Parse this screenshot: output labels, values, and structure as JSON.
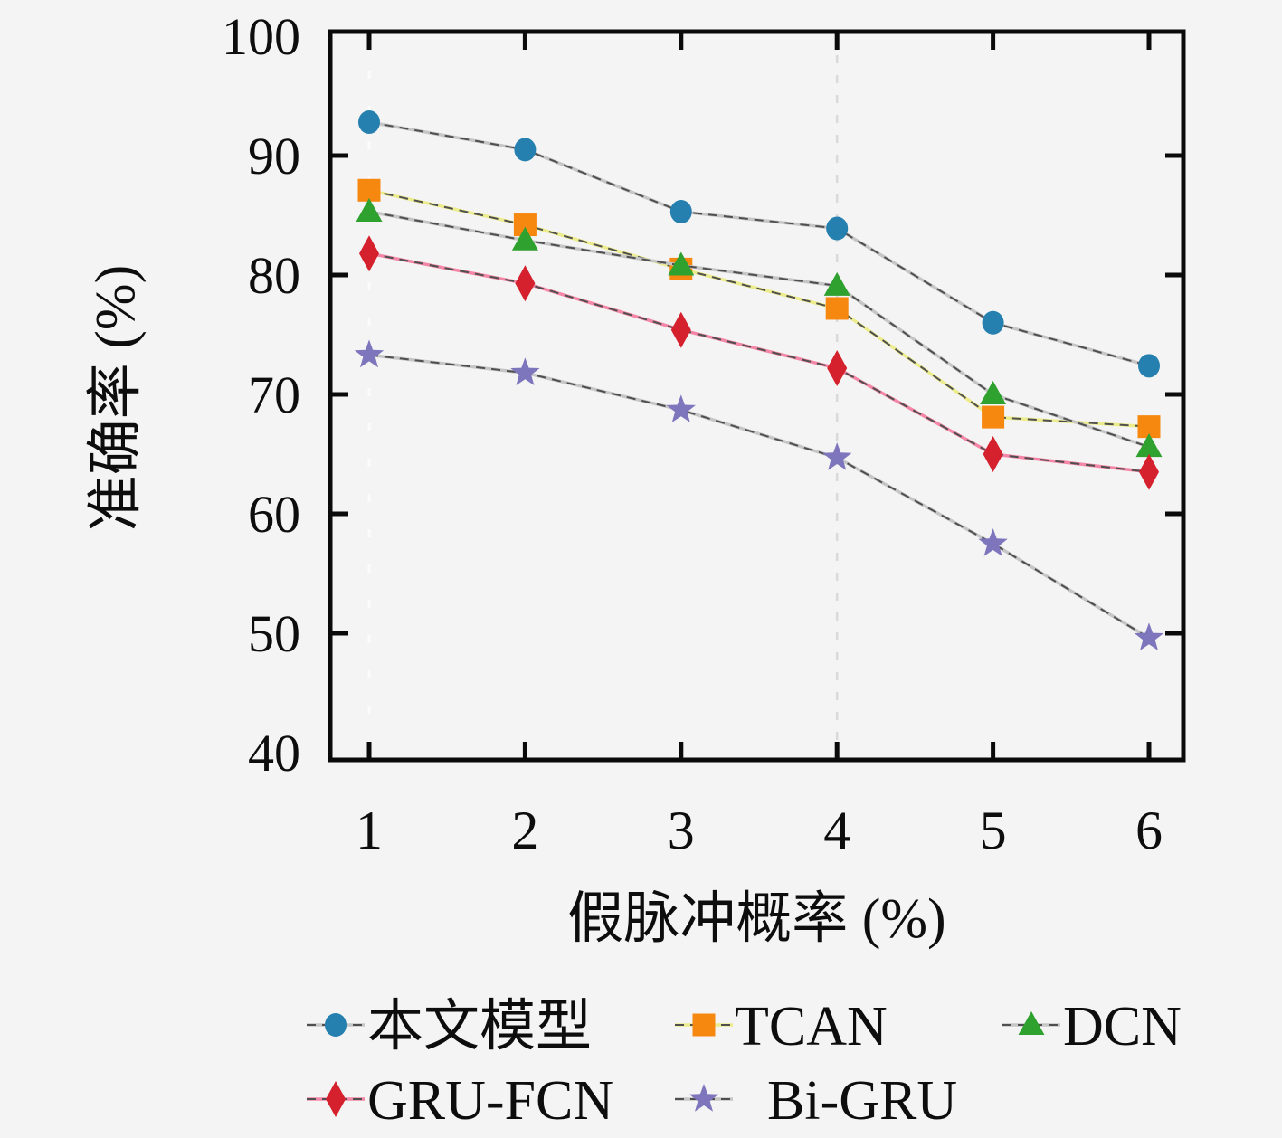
{
  "figure": {
    "background": "#f4f4f4",
    "frame_color": "#0a0a0a",
    "dash_overlay_color": "#4f4f4f"
  },
  "axes": {
    "ylabel": "准确率 (%)",
    "xlabel": "假脉冲概率 (%)",
    "ytick_labels": [
      "100",
      "90",
      "80",
      "70",
      "60",
      "50",
      "40"
    ],
    "xtick_labels": [
      "1",
      "2",
      "3",
      "4",
      "5",
      "6"
    ]
  },
  "chart_data": {
    "type": "line",
    "title": "",
    "xlabel": "假脉冲概率 (%)",
    "ylabel": "准确率 (%)",
    "x": [
      1,
      2,
      3,
      4,
      5,
      6
    ],
    "xlim": [
      0.63,
      6.22
    ],
    "ylim": [
      39.4,
      100.4
    ],
    "yticks": [
      100,
      90,
      80,
      70,
      60,
      50,
      40
    ],
    "xticks": [
      1,
      2,
      3,
      4,
      5,
      6
    ],
    "grid": "faint dashed vertical lines at x=1 (white) and x=4 (gray)",
    "legend_position": "below plot, two rows",
    "series": [
      {
        "name": "本文模型",
        "marker": "circle",
        "color": "#2580b0",
        "line_underlay": "#c6c6c6",
        "values": [
          92.8,
          90.5,
          85.3,
          83.9,
          76.0,
          72.4
        ]
      },
      {
        "name": "TCAN",
        "marker": "square",
        "color": "#f6870f",
        "line_underlay": "#ecec8d",
        "values": [
          87.1,
          84.2,
          80.5,
          77.2,
          68.1,
          67.3
        ]
      },
      {
        "name": "DCN",
        "marker": "triangle",
        "color": "#2fa12f",
        "line_underlay": "#c6c6c6",
        "values": [
          85.3,
          82.9,
          80.8,
          79.1,
          70.0,
          65.6
        ]
      },
      {
        "name": "GRU-FCN",
        "marker": "diamond",
        "color": "#d4212d",
        "line_underlay": "#f487a7",
        "values": [
          81.8,
          79.3,
          75.4,
          72.2,
          65.0,
          63.5
        ]
      },
      {
        "name": "Bi-GRU",
        "marker": "star",
        "color": "#7e76bd",
        "line_underlay": "#c6c6c6",
        "values": [
          73.3,
          71.8,
          68.7,
          64.7,
          57.5,
          49.6
        ]
      }
    ]
  }
}
